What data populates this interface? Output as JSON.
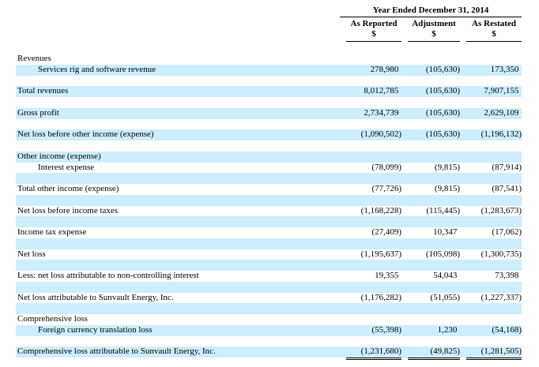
{
  "page": {
    "background": "#ffffff",
    "text_color": "#000000"
  },
  "table": {
    "stripe_color": "#cceeff",
    "period_header": "Year Ended December 31, 2014",
    "columns": [
      {
        "label": "As Reported",
        "unit": "$"
      },
      {
        "label": "Adjustment",
        "unit": "$"
      },
      {
        "label": "As Restated",
        "unit": "$"
      }
    ],
    "rows": [
      {
        "label": "Revenues",
        "indent": 0,
        "shaded": false,
        "section": true,
        "values": [
          "",
          "",
          ""
        ]
      },
      {
        "label": "Services rig and software revenue",
        "indent": 1,
        "shaded": true,
        "values": [
          "278,980",
          "(105,630)",
          "173,350"
        ]
      },
      {
        "label": "",
        "indent": 0,
        "shaded": false,
        "spacer": true,
        "values": [
          "",
          "",
          ""
        ]
      },
      {
        "label": "Total revenues",
        "indent": 0,
        "shaded": true,
        "values": [
          "8,012,785",
          "(105,630)",
          "7,907,155"
        ]
      },
      {
        "label": "",
        "indent": 0,
        "shaded": false,
        "spacer": true,
        "values": [
          "",
          "",
          ""
        ]
      },
      {
        "label": "Gross profit",
        "indent": 0,
        "shaded": true,
        "values": [
          "2,734,739",
          "(105,630)",
          "2,629,109"
        ]
      },
      {
        "label": "",
        "indent": 0,
        "shaded": false,
        "spacer": true,
        "values": [
          "",
          "",
          ""
        ]
      },
      {
        "label": "Net loss before other income (expense)",
        "indent": 0,
        "shaded": true,
        "values": [
          "(1,090,502)",
          "(105,630)",
          "(1,196,132)"
        ]
      },
      {
        "label": "",
        "indent": 0,
        "shaded": false,
        "spacer": true,
        "values": [
          "",
          "",
          ""
        ]
      },
      {
        "label": "Other income (expense)",
        "indent": 0,
        "shaded": true,
        "section": true,
        "values": [
          "",
          "",
          ""
        ]
      },
      {
        "label": "Interest expense",
        "indent": 1,
        "shaded": false,
        "values": [
          "(78,099)",
          "(9,815)",
          "(87,914)"
        ]
      },
      {
        "label": "",
        "indent": 0,
        "shaded": true,
        "spacer": true,
        "values": [
          "",
          "",
          ""
        ]
      },
      {
        "label": "Total other income (expense)",
        "indent": 0,
        "shaded": false,
        "values": [
          "(77,726)",
          "(9,815)",
          "(87,541)"
        ]
      },
      {
        "label": "",
        "indent": 0,
        "shaded": true,
        "spacer": true,
        "values": [
          "",
          "",
          ""
        ]
      },
      {
        "label": "Net loss before income taxes",
        "indent": 0,
        "shaded": false,
        "values": [
          "(1,168,228)",
          "(115,445)",
          "(1,283,673)"
        ]
      },
      {
        "label": "",
        "indent": 0,
        "shaded": true,
        "spacer": true,
        "values": [
          "",
          "",
          ""
        ]
      },
      {
        "label": "Income tax expense",
        "indent": 0,
        "shaded": false,
        "values": [
          "(27,409)",
          "10,347",
          "(17,062)"
        ]
      },
      {
        "label": "",
        "indent": 0,
        "shaded": true,
        "spacer": true,
        "values": [
          "",
          "",
          ""
        ]
      },
      {
        "label": "Net loss",
        "indent": 0,
        "shaded": false,
        "values": [
          "(1,195,637)",
          "(105,098)",
          "(1,300,735)"
        ]
      },
      {
        "label": "",
        "indent": 0,
        "shaded": true,
        "spacer": true,
        "values": [
          "",
          "",
          ""
        ]
      },
      {
        "label": "Less: net loss attributable to non-controlling interest",
        "indent": 0,
        "shaded": false,
        "values": [
          "19,355",
          "54,043",
          "73,398"
        ]
      },
      {
        "label": "",
        "indent": 0,
        "shaded": true,
        "spacer": true,
        "values": [
          "",
          "",
          ""
        ]
      },
      {
        "label": "Net loss attributable to Sunvault Energy, Inc.",
        "indent": 0,
        "shaded": false,
        "values": [
          "(1,176,282)",
          "(51,055)",
          "(1,227,337)"
        ]
      },
      {
        "label": "",
        "indent": 0,
        "shaded": true,
        "spacer": true,
        "values": [
          "",
          "",
          ""
        ]
      },
      {
        "label": "Comprehensive loss",
        "indent": 0,
        "shaded": false,
        "section": true,
        "values": [
          "",
          "",
          ""
        ]
      },
      {
        "label": "Foreign currency translation loss",
        "indent": 1,
        "shaded": true,
        "values": [
          "(55,398)",
          "1,230",
          "(54,168)"
        ]
      },
      {
        "label": "",
        "indent": 0,
        "shaded": false,
        "spacer": true,
        "values": [
          "",
          "",
          ""
        ]
      },
      {
        "label": "Comprehensive loss attributable to Sunvault Energy, Inc.",
        "indent": 0,
        "shaded": true,
        "underline": "double",
        "values": [
          "(1,231,680)",
          "(49,825)",
          "(1,281,505)"
        ]
      }
    ]
  }
}
